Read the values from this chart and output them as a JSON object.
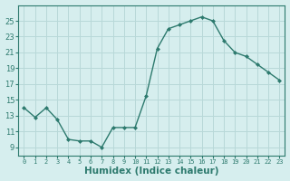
{
  "x": [
    0,
    1,
    2,
    3,
    4,
    5,
    6,
    7,
    8,
    9,
    10,
    11,
    12,
    13,
    14,
    15,
    16,
    17,
    18,
    19,
    20,
    21,
    22,
    23
  ],
  "y": [
    14.0,
    12.8,
    14.0,
    12.5,
    10.0,
    9.8,
    9.8,
    9.0,
    11.5,
    11.5,
    11.5,
    15.5,
    21.5,
    24.0,
    24.5,
    25.0,
    25.5,
    25.0,
    22.5,
    21.0,
    20.5,
    19.5,
    18.5,
    17.5
  ],
  "xlabel": "Humidex (Indice chaleur)",
  "ylabel": "",
  "ylim": [
    8,
    27
  ],
  "xlim": [
    -0.5,
    23.5
  ],
  "yticks": [
    9,
    11,
    13,
    15,
    17,
    19,
    21,
    23,
    25
  ],
  "xtick_labels": [
    "0",
    "1",
    "2",
    "3",
    "4",
    "5",
    "6",
    "7",
    "8",
    "9",
    "10",
    "11",
    "12",
    "13",
    "14",
    "15",
    "16",
    "17",
    "18",
    "19",
    "20",
    "21",
    "22",
    "23"
  ],
  "line_color": "#2d7a6e",
  "marker": "D",
  "marker_size": 2.0,
  "bg_color": "#d6eeee",
  "grid_color": "#b8d8d8",
  "xlabel_fontsize": 7.5,
  "tick_fontsize": 6.0,
  "xtick_fontsize": 5.0
}
